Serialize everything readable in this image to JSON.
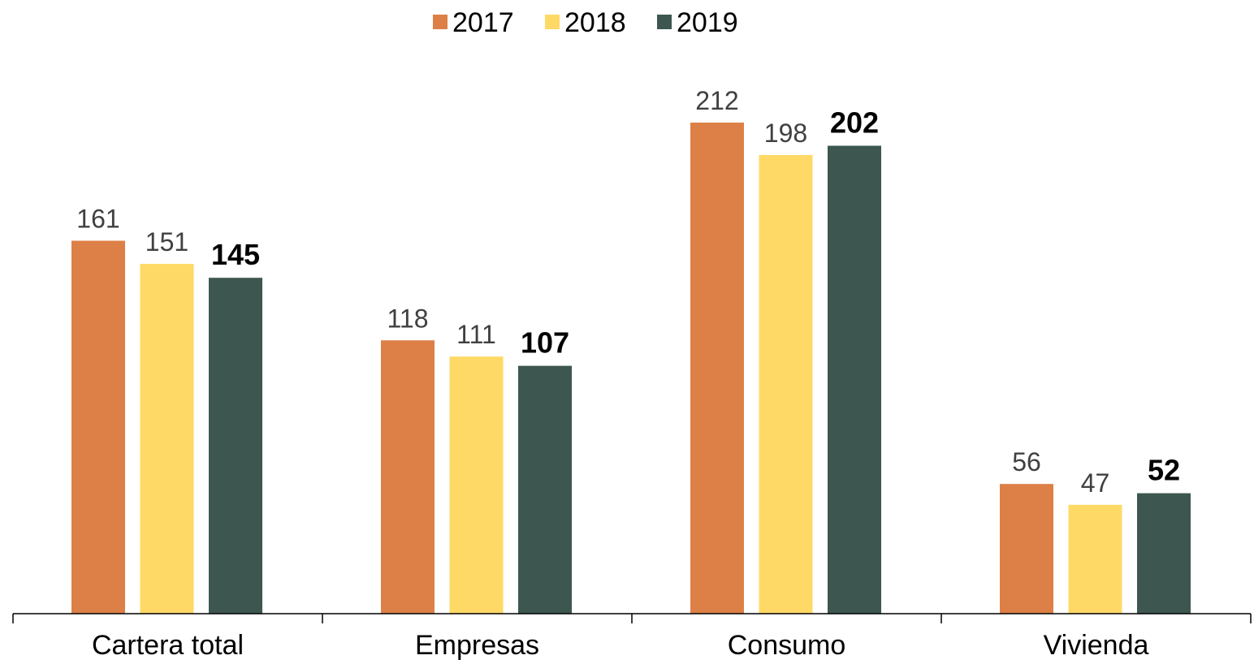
{
  "chart_data": {
    "type": "bar",
    "categories": [
      "Cartera total",
      "Empresas",
      "Consumo",
      "Vivienda"
    ],
    "series": [
      {
        "name": "2017",
        "values": [
          161,
          118,
          212,
          56
        ],
        "color": "#DD8047",
        "label_style": "normal"
      },
      {
        "name": "2018",
        "values": [
          151,
          111,
          198,
          47
        ],
        "color": "#FFD966",
        "label_style": "normal"
      },
      {
        "name": "2019",
        "values": [
          145,
          107,
          202,
          52
        ],
        "color": "#3D5750",
        "label_style": "bold"
      }
    ],
    "title": "",
    "xlabel": "",
    "ylabel": "",
    "ylim": [
      0,
      212
    ],
    "grid": false,
    "legend_position": "top-center",
    "data_labels": true
  }
}
